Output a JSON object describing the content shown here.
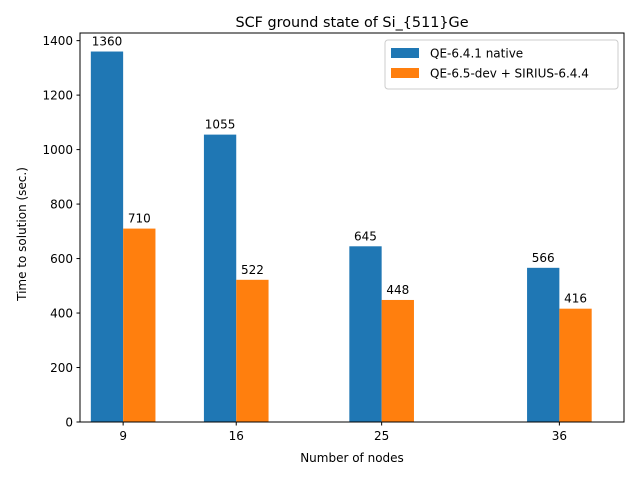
{
  "chart_data": {
    "type": "bar",
    "title": "SCF ground state of Si_{511}Ge",
    "xlabel": "Number of nodes",
    "ylabel": "Time to solution (sec.)",
    "x": [
      9,
      16,
      25,
      36
    ],
    "xlim": [
      6.33,
      40.0
    ],
    "ylim": [
      0,
      1428
    ],
    "yticks": [
      0,
      200,
      400,
      600,
      800,
      1000,
      1200,
      1400
    ],
    "bar_width": 2.0,
    "legend_position": "top-right",
    "series": [
      {
        "name": "QE-6.4.1 native",
        "color": "#1f77b4",
        "values": [
          1360,
          1055,
          645,
          566
        ]
      },
      {
        "name": "QE-6.5-dev + SIRIUS-6.4.4",
        "color": "#ff7f0e",
        "values": [
          710,
          522,
          448,
          416
        ]
      }
    ]
  }
}
